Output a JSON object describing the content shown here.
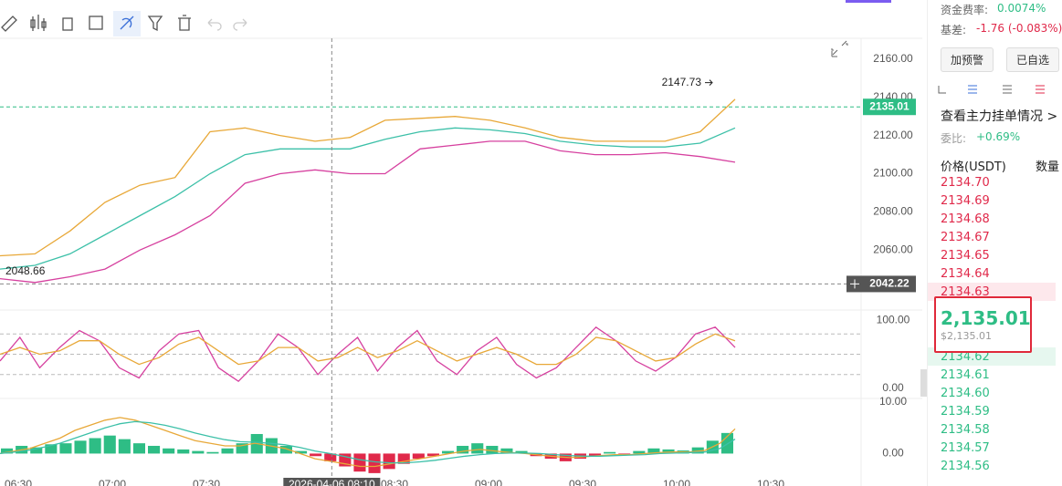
{
  "chart": {
    "price_axis": {
      "ylim": [
        2030,
        2170
      ],
      "yticks": [
        {
          "value": 2060,
          "label": "2060.00"
        },
        {
          "value": 2080,
          "label": "2080.00"
        },
        {
          "value": 2100,
          "label": "2100.00"
        },
        {
          "value": 2120,
          "label": "2120.00"
        },
        {
          "value": 2140,
          "label": "2140.00"
        },
        {
          "value": 2160,
          "label": "2160.00"
        }
      ]
    },
    "current_price": {
      "value": 2135.01,
      "label": "2135.01"
    },
    "crosshair_price": {
      "value": 2042.22,
      "label": "2042.22"
    },
    "high_marker": {
      "value": 2147.73,
      "label": "2147.73"
    },
    "low_marker": {
      "value": 2048.66,
      "label": "2048.66"
    },
    "bands": {
      "series": [
        {
          "color": "#e8a838",
          "values": [
            2057,
            2058,
            2070,
            2085,
            2094,
            2098,
            2122,
            2124,
            2120,
            2117,
            2119,
            2128,
            2129,
            2130,
            2128,
            2124,
            2119,
            2117,
            2117,
            2117,
            2122,
            2139
          ]
        },
        {
          "color": "#3cc0a8",
          "values": [
            2050,
            2052,
            2058,
            2068,
            2078,
            2088,
            2100,
            2110,
            2113,
            2113,
            2113,
            2118,
            2122,
            2124,
            2123,
            2121,
            2117,
            2115,
            2114,
            2114,
            2116,
            2124
          ]
        },
        {
          "color": "#d6409f",
          "values": [
            2045,
            2043,
            2046,
            2050,
            2060,
            2068,
            2078,
            2095,
            2100,
            2102,
            2100,
            2100,
            2113,
            2115,
            2117,
            2117,
            2112,
            2110,
            2110,
            2111,
            2109,
            2106
          ]
        }
      ]
    },
    "oscillator": {
      "ylim": [
        -10,
        110
      ],
      "yticks": [
        {
          "value": 0,
          "label": "0.00"
        },
        {
          "value": 100,
          "label": "100.00"
        }
      ],
      "levels": [
        80,
        50,
        20
      ],
      "series": [
        {
          "color": "#d6409f",
          "values": [
            40,
            75,
            30,
            60,
            85,
            70,
            30,
            15,
            55,
            80,
            85,
            30,
            10,
            40,
            80,
            60,
            20,
            50,
            75,
            25,
            60,
            85,
            40,
            20,
            55,
            75,
            35,
            15,
            30,
            60,
            90,
            70,
            40,
            25,
            45,
            80,
            90,
            60
          ]
        },
        {
          "color": "#e8a838",
          "values": [
            50,
            60,
            50,
            55,
            70,
            70,
            50,
            35,
            45,
            65,
            75,
            55,
            35,
            40,
            60,
            60,
            40,
            45,
            60,
            45,
            55,
            70,
            55,
            40,
            50,
            60,
            50,
            35,
            35,
            50,
            75,
            70,
            55,
            40,
            45,
            65,
            80,
            70
          ]
        }
      ]
    },
    "macd": {
      "ylim": [
        -4,
        10
      ],
      "yticks": [
        {
          "value": 0,
          "label": "0.00"
        },
        {
          "value": 10,
          "label": "10.00"
        }
      ],
      "histogram": [
        1,
        1.5,
        1.2,
        1.8,
        2,
        2.5,
        3,
        3.5,
        2.8,
        2,
        1.5,
        1,
        0.8,
        0.5,
        0.3,
        1,
        2,
        3.8,
        3,
        1.5,
        0.5,
        -0.5,
        -1.5,
        -2.5,
        -3.5,
        -3.8,
        -3,
        -2,
        -1,
        -0.5,
        0.5,
        1.5,
        2,
        1.5,
        1,
        0.5,
        -0.5,
        -1,
        -1.5,
        -1,
        -0.5,
        0.3,
        -0.3,
        0.5,
        1,
        0.8,
        0.6,
        1.2,
        2.5,
        4
      ],
      "series": [
        {
          "color": "#e8a838",
          "values": [
            0,
            0.5,
            1,
            2,
            3,
            4.5,
            5.5,
            6.5,
            7,
            6.5,
            5.5,
            4.5,
            3.5,
            2.5,
            2,
            1.5,
            1.5,
            2,
            1.5,
            1,
            0,
            -1,
            -1.5,
            -2,
            -2.5,
            -2.5,
            -2,
            -1.5,
            -1,
            -0.5,
            0,
            0.5,
            0.8,
            0.5,
            0.2,
            0,
            -0.3,
            -0.6,
            -0.8,
            -0.6,
            -0.4,
            -0.2,
            -0.2,
            0,
            0.2,
            0.3,
            0.3,
            0.6,
            2,
            4.8
          ]
        },
        {
          "color": "#3cc0a8",
          "values": [
            0,
            0.3,
            0.7,
            1.3,
            2,
            3,
            4,
            5,
            5.8,
            6.2,
            6,
            5.5,
            4.8,
            4,
            3.3,
            2.7,
            2.3,
            2.2,
            2,
            1.7,
            1.2,
            0.5,
            0,
            -0.6,
            -1.2,
            -1.6,
            -1.8,
            -1.8,
            -1.6,
            -1.3,
            -0.9,
            -0.5,
            -0.2,
            0,
            0.1,
            0.1,
            0,
            -0.2,
            -0.4,
            -0.5,
            -0.5,
            -0.4,
            -0.3,
            -0.2,
            0,
            0.1,
            0.2,
            0.3,
            1,
            2.8
          ]
        }
      ]
    },
    "time_axis": {
      "ticks": [
        {
          "value": 390,
          "label": "06:30"
        },
        {
          "value": 420,
          "label": "07:00"
        },
        {
          "value": 450,
          "label": "07:30"
        },
        {
          "value": 510,
          "label": "08:30"
        },
        {
          "value": 540,
          "label": "09:00"
        },
        {
          "value": 570,
          "label": "09:30"
        },
        {
          "value": 600,
          "label": "10:00"
        },
        {
          "value": 630,
          "label": "10:30"
        }
      ],
      "crosshair": {
        "value": 490,
        "label": "2026-04-06 08:10"
      }
    }
  },
  "right_panel": {
    "funding_rate": {
      "label": "资金费率:",
      "value": "0.0074%"
    },
    "basis": {
      "label": "基差:",
      "value": "-1.76 (-0.083%)"
    },
    "buttons": [
      "加预警",
      "已自选"
    ],
    "depth_link": "查看主力挂单情况 >",
    "ratio": {
      "label": "委比:",
      "value": "+0.69%"
    },
    "columns": [
      "价格(USDT)",
      "数量"
    ],
    "asks": [
      "2134.70",
      "2134.69",
      "2134.68",
      "2134.67",
      "2134.65",
      "2134.64",
      "2134.63"
    ],
    "last_price": "2,135.01",
    "last_price_usd": "$2,135.01",
    "bids": [
      "2134.62",
      "2134.61",
      "2134.60",
      "2134.59",
      "2134.58",
      "2134.57",
      "2134.56"
    ]
  }
}
